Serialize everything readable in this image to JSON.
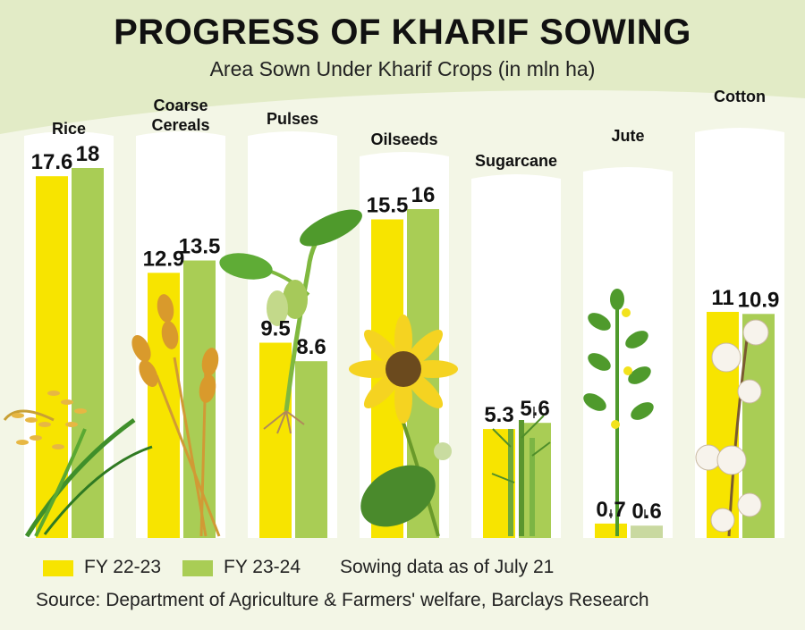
{
  "chart_data": {
    "type": "bar",
    "title": "PROGRESS OF KHARIF SOWING",
    "subtitle": "Area Sown Under Kharif Crops (in mln ha)",
    "categories": [
      "Rice",
      "Coarse\nCereals",
      "Pulses",
      "Oilseeds",
      "Sugarcane",
      "Jute",
      "Cotton"
    ],
    "series": [
      {
        "name": "FY 22-23",
        "values": [
          17.6,
          12.9,
          9.5,
          15.5,
          5.3,
          0.7,
          11
        ],
        "color": "#f7e400"
      },
      {
        "name": "FY 23-24",
        "values": [
          18,
          13.5,
          8.6,
          16,
          5.6,
          0.6,
          10.9
        ],
        "color": "#a9cd55"
      }
    ],
    "value_labels": [
      [
        "17.6",
        "18"
      ],
      [
        "12.9",
        "13.5"
      ],
      [
        "9.5",
        "8.6"
      ],
      [
        "15.5",
        "16"
      ],
      [
        "5.3",
        "5.6"
      ],
      [
        "0.7",
        "0.6"
      ],
      [
        "11",
        "10.9"
      ]
    ],
    "ylim": [
      0,
      19
    ],
    "grid": false,
    "legend_position": "bottom-left"
  },
  "legend": {
    "fy2223": "FY 22-23",
    "fy2324": "FY 23-24",
    "note": "Sowing data as of July 21"
  },
  "source": "Source: Department of Agriculture & Farmers' welfare, Barclays Research",
  "colors": {
    "background": "#f3f6e6",
    "panel": "#ffffff",
    "fy2223": "#f7e400",
    "fy2324": "#a9cd55",
    "jute_fy2324": "#c9d9a0"
  },
  "illustrations": [
    "rice-plant",
    "wheat-ears",
    "seedling",
    "sunflower",
    "sugarcane",
    "jute-plant",
    "cotton-plant"
  ]
}
